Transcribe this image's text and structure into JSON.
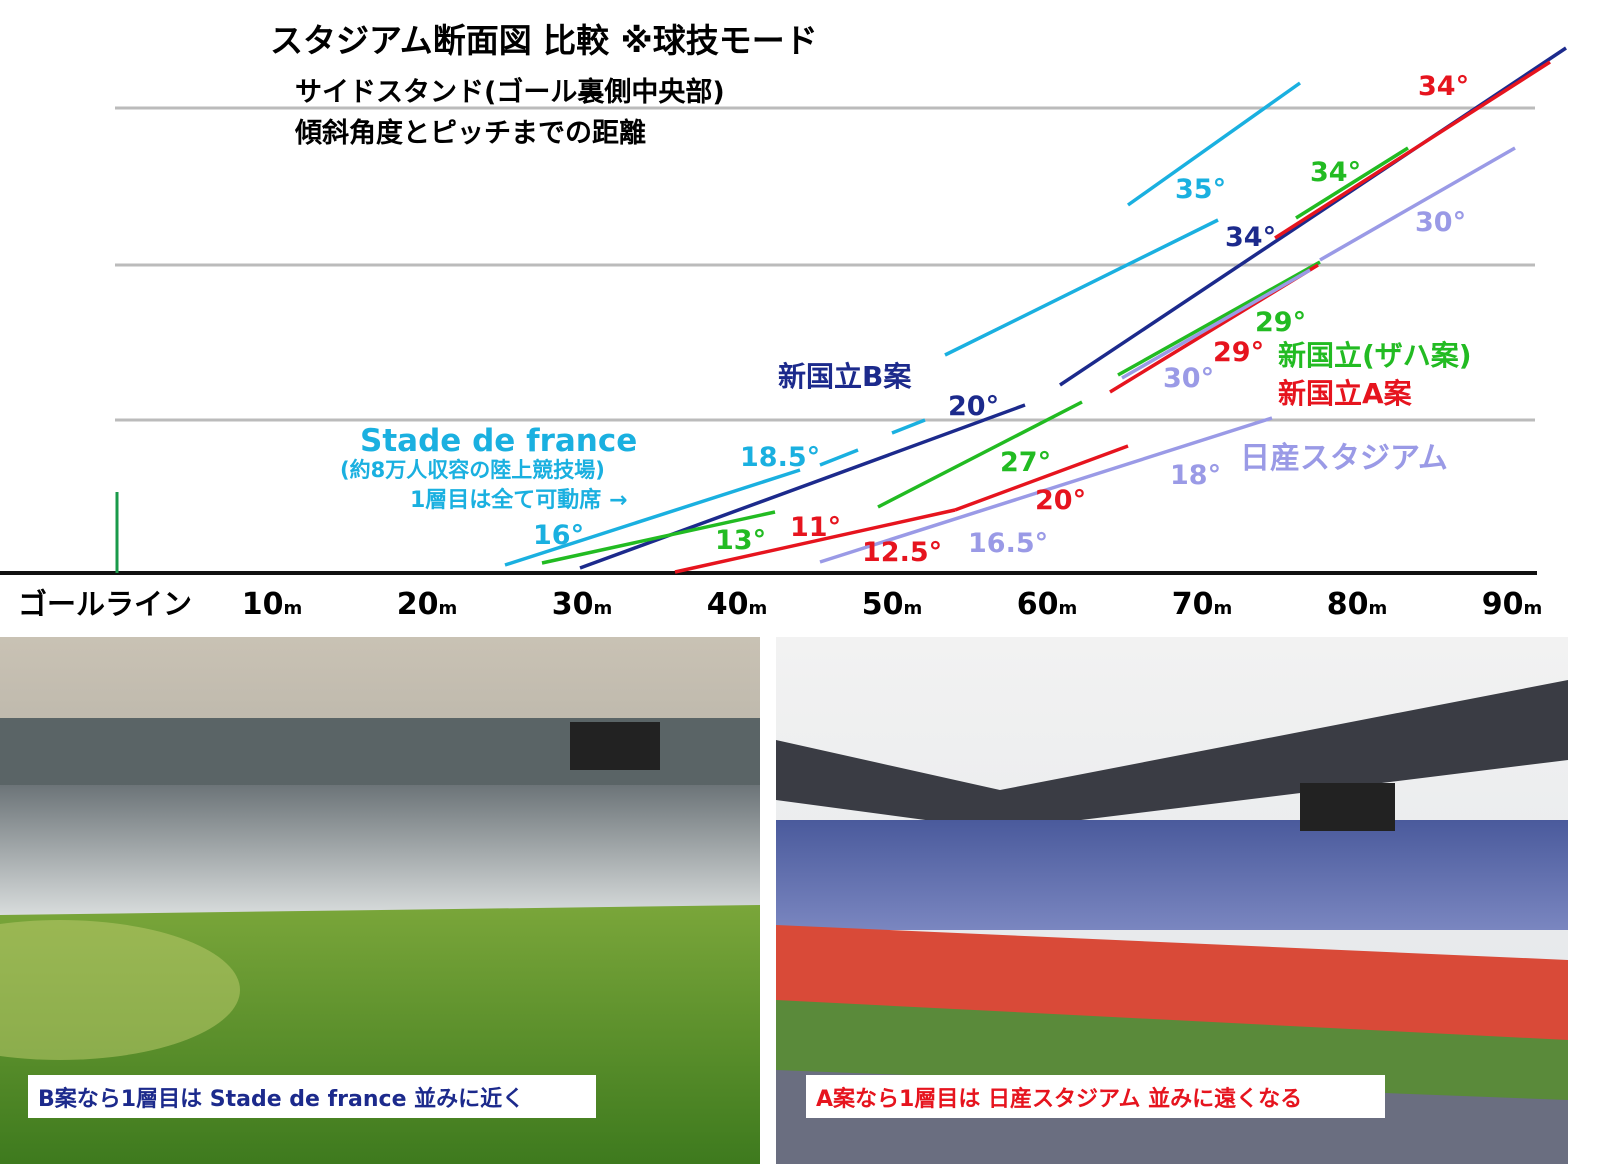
{
  "header": {
    "title": "スタジアム断面図 比較 ※球技モード",
    "subtitle_lines": [
      "サイドスタンド(ゴール裏側中央部)",
      "傾斜角度とピッチまでの距離"
    ]
  },
  "axis": {
    "origin_label": "ゴールライン",
    "ticks": [
      {
        "number": "10",
        "unit": "m"
      },
      {
        "number": "20",
        "unit": "m"
      },
      {
        "number": "30",
        "unit": "m"
      },
      {
        "number": "40",
        "unit": "m"
      },
      {
        "number": "50",
        "unit": "m"
      },
      {
        "number": "60",
        "unit": "m"
      },
      {
        "number": "70",
        "unit": "m"
      },
      {
        "number": "80",
        "unit": "m"
      },
      {
        "number": "90",
        "unit": "m"
      }
    ]
  },
  "angle_labels": [
    "35°",
    "34°",
    "34°",
    "34°",
    "30°",
    "29°",
    "29°",
    "30°",
    "20°",
    "18.5°",
    "27°",
    "20°",
    "18°",
    "16°",
    "13°",
    "11°",
    "12.5°",
    "16.5°"
  ],
  "legends": [
    "新国立B案",
    "Stade de france",
    "(約8万人収容の陸上競技場)",
    "1層目は全て可動席 →",
    "新国立(ザハ案)",
    "新国立A案",
    "日産スタジアム"
  ],
  "photos": [
    {
      "caption": "B案なら1層目は Stade de france 並みに近く"
    },
    {
      "caption": "A案なら1層目は 日産スタジアム 並みに遠くなる"
    }
  ]
}
